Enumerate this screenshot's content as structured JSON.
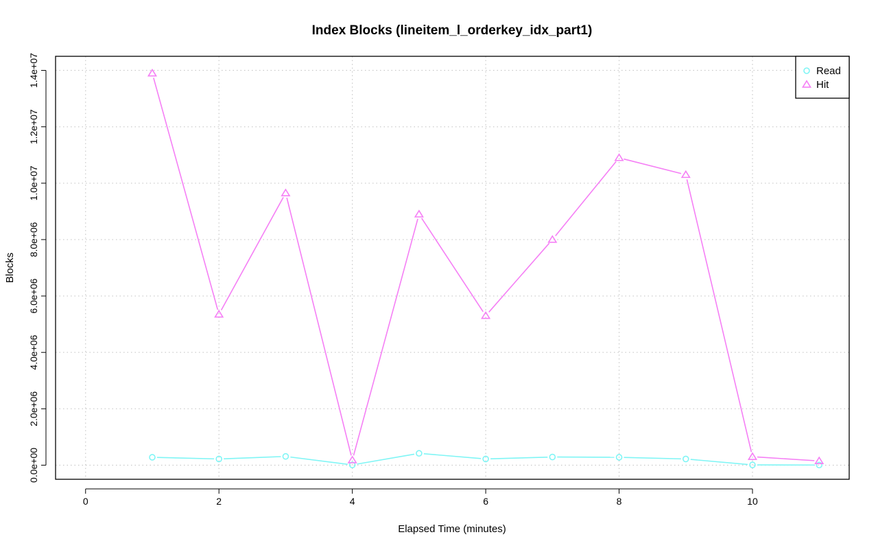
{
  "chart_data": {
    "type": "line",
    "title": "Index Blocks (lineitem_l_orderkey_idx_part1)",
    "xlabel": "Elapsed Time (minutes)",
    "ylabel": "Blocks",
    "xlim": [
      -0.45,
      11.45
    ],
    "ylim": [
      -500000,
      14500000
    ],
    "x_ticks": [
      0,
      2,
      4,
      6,
      8,
      10
    ],
    "x_tick_labels": [
      "0",
      "2",
      "4",
      "6",
      "8",
      "10"
    ],
    "y_ticks": [
      0,
      2000000,
      4000000,
      6000000,
      8000000,
      10000000,
      12000000,
      14000000
    ],
    "y_tick_labels": [
      "0.0e+00",
      "2.0e+06",
      "4.0e+06",
      "6.0e+06",
      "8.0e+06",
      "1.0e+07",
      "1.2e+07",
      "1.4e+07"
    ],
    "grid": true,
    "legend_position": "top-right",
    "x": [
      1,
      2,
      3,
      4,
      5,
      6,
      7,
      8,
      9,
      10,
      11
    ],
    "series": [
      {
        "name": "Read",
        "marker": "circle",
        "color": "#7ff5f5",
        "values": [
          280000,
          220000,
          310000,
          10000,
          420000,
          220000,
          290000,
          280000,
          220000,
          10000,
          5000
        ]
      },
      {
        "name": "Hit",
        "marker": "triangle",
        "color": "#f57ff5",
        "values": [
          13900000,
          5350000,
          9650000,
          180000,
          8900000,
          5300000,
          8000000,
          10900000,
          10300000,
          300000,
          150000
        ]
      }
    ]
  }
}
